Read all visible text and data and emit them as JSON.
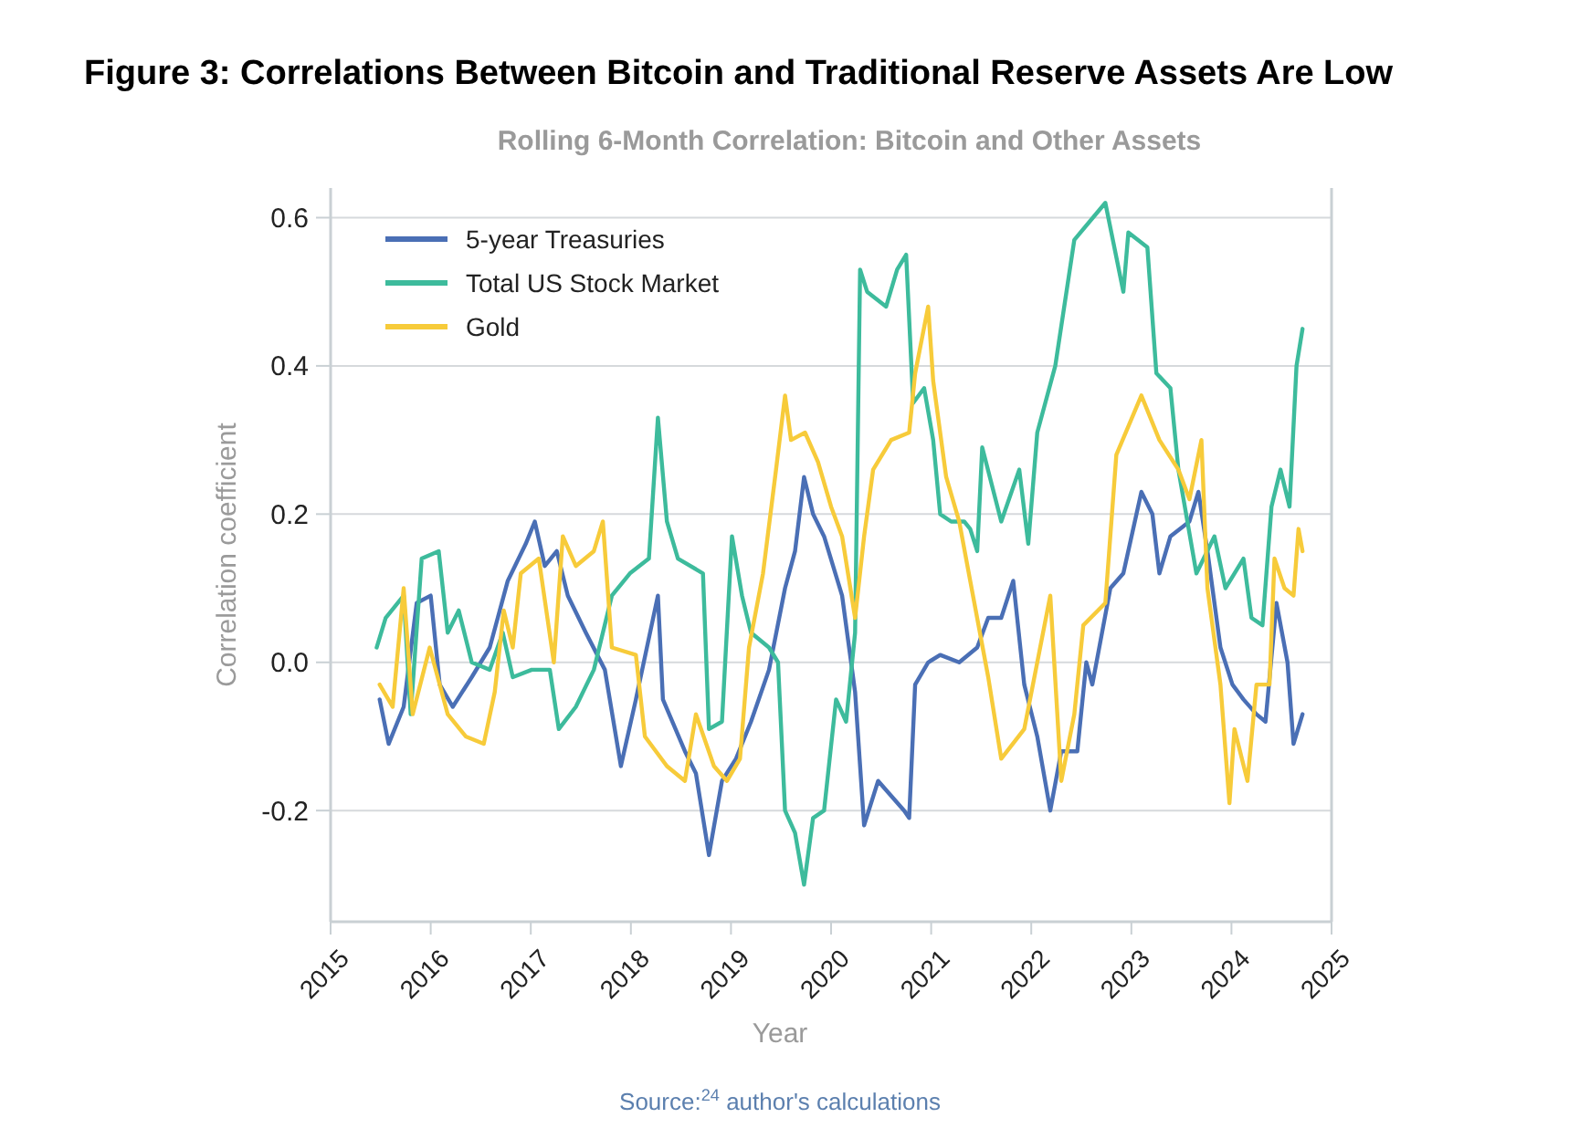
{
  "chart_data": {
    "type": "line",
    "title": "Figure 3: Correlations Between Bitcoin and Traditional Reserve Assets Are Low",
    "subtitle": "Rolling 6-Month Correlation: Bitcoin and Other Assets",
    "xlabel": "Year",
    "ylabel": "Correlation coefficient",
    "annotations": [
      "Source:$^{24}$ author's calculations"
    ],
    "xlim": [
      2015,
      2025
    ],
    "xticks": [
      2015,
      2016,
      2017,
      2018,
      2019,
      2020,
      2021,
      2022,
      2023,
      2024,
      2025
    ],
    "ylim": [
      -0.35,
      0.64
    ],
    "yticks": [
      -0.2,
      {
        "value": 0,
        "label": "0.0"
      },
      0.2,
      0.4,
      0.6
    ],
    "grid": "y",
    "legend": "top left",
    "line_style": "solid",
    "marker": "none",
    "series": [
      {
        "name": "5-year Treasuries",
        "color": "#4a6fb5",
        "x": [
          2015.49,
          2015.58,
          2015.73,
          2015.86,
          2016.0,
          2016.09,
          2016.22,
          2016.41,
          2016.59,
          2016.77,
          2016.95,
          2017.04,
          2017.14,
          2017.26,
          2017.37,
          2017.55,
          2017.74,
          2017.9,
          2018.05,
          2018.27,
          2018.32,
          2018.54,
          2018.65,
          2018.78,
          2018.91,
          2019.05,
          2019.2,
          2019.38,
          2019.54,
          2019.64,
          2019.73,
          2019.82,
          2019.93,
          2020.11,
          2020.24,
          2020.33,
          2020.47,
          2020.73,
          2020.78,
          2020.84,
          2020.97,
          2021.09,
          2021.28,
          2021.46,
          2021.57,
          2021.7,
          2021.82,
          2021.93,
          2022.06,
          2022.19,
          2022.3,
          2022.46,
          2022.55,
          2022.61,
          2022.79,
          2022.92,
          2023.1,
          2023.21,
          2023.28,
          2023.39,
          2023.58,
          2023.67,
          2023.76,
          2023.89,
          2024.01,
          2024.12,
          2024.25,
          2024.34,
          2024.45,
          2024.56,
          2024.62,
          2024.71
        ],
        "values": [
          -0.05,
          -0.11,
          -0.06,
          0.08,
          0.09,
          -0.03,
          -0.06,
          -0.02,
          0.02,
          0.11,
          0.16,
          0.19,
          0.13,
          0.15,
          0.09,
          0.04,
          -0.01,
          -0.14,
          -0.05,
          0.09,
          -0.05,
          -0.12,
          -0.15,
          -0.26,
          -0.16,
          -0.13,
          -0.08,
          -0.01,
          0.1,
          0.15,
          0.25,
          0.2,
          0.17,
          0.09,
          -0.04,
          -0.22,
          -0.16,
          -0.2,
          -0.21,
          -0.03,
          0.0,
          0.01,
          0.0,
          0.02,
          0.06,
          0.06,
          0.11,
          -0.03,
          -0.1,
          -0.2,
          -0.12,
          -0.12,
          0.0,
          -0.03,
          0.1,
          0.12,
          0.23,
          0.2,
          0.12,
          0.17,
          0.19,
          0.23,
          0.15,
          0.02,
          -0.03,
          -0.05,
          -0.07,
          -0.08,
          0.08,
          0.0,
          -0.11,
          -0.07
        ]
      },
      {
        "name": "Total US Stock Market",
        "color": "#3dbb9c",
        "x": [
          2015.46,
          2015.55,
          2015.73,
          2015.8,
          2015.91,
          2016.08,
          2016.17,
          2016.28,
          2016.41,
          2016.59,
          2016.72,
          2016.82,
          2017.01,
          2017.19,
          2017.28,
          2017.45,
          2017.63,
          2017.81,
          2017.99,
          2018.18,
          2018.27,
          2018.36,
          2018.47,
          2018.72,
          2018.78,
          2018.91,
          2019.01,
          2019.11,
          2019.2,
          2019.38,
          2019.47,
          2019.54,
          2019.64,
          2019.73,
          2019.82,
          2019.93,
          2020.05,
          2020.15,
          2020.24,
          2020.29,
          2020.36,
          2020.55,
          2020.66,
          2020.75,
          2020.82,
          2020.93,
          2021.02,
          2021.09,
          2021.2,
          2021.33,
          2021.39,
          2021.46,
          2021.51,
          2021.7,
          2021.88,
          2021.97,
          2022.06,
          2022.24,
          2022.43,
          2022.74,
          2022.92,
          2022.97,
          2023.16,
          2023.25,
          2023.39,
          2023.47,
          2023.65,
          2023.83,
          2023.94,
          2024.12,
          2024.2,
          2024.31,
          2024.4,
          2024.49,
          2024.58,
          2024.65,
          2024.71
        ],
        "values": [
          0.02,
          0.06,
          0.09,
          -0.07,
          0.14,
          0.15,
          0.04,
          0.07,
          0.0,
          -0.01,
          0.04,
          -0.02,
          -0.01,
          -0.01,
          -0.09,
          -0.06,
          -0.01,
          0.09,
          0.12,
          0.14,
          0.33,
          0.19,
          0.14,
          0.12,
          -0.09,
          -0.08,
          0.17,
          0.09,
          0.04,
          0.02,
          0.0,
          -0.2,
          -0.23,
          -0.3,
          -0.21,
          -0.2,
          -0.05,
          -0.08,
          0.04,
          0.53,
          0.5,
          0.48,
          0.53,
          0.55,
          0.35,
          0.37,
          0.3,
          0.2,
          0.19,
          0.19,
          0.18,
          0.15,
          0.29,
          0.19,
          0.26,
          0.16,
          0.31,
          0.4,
          0.57,
          0.62,
          0.5,
          0.58,
          0.56,
          0.39,
          0.37,
          0.26,
          0.12,
          0.17,
          0.1,
          0.14,
          0.06,
          0.05,
          0.21,
          0.26,
          0.21,
          0.4,
          0.45
        ]
      },
      {
        "name": "Gold",
        "color": "#f7cb3a",
        "x": [
          2015.49,
          2015.62,
          2015.73,
          2015.82,
          2015.99,
          2016.17,
          2016.35,
          2016.53,
          2016.64,
          2016.73,
          2016.82,
          2016.9,
          2017.08,
          2017.23,
          2017.32,
          2017.45,
          2017.63,
          2017.72,
          2017.81,
          2018.05,
          2018.14,
          2018.36,
          2018.54,
          2018.65,
          2018.83,
          2018.96,
          2019.09,
          2019.18,
          2019.32,
          2019.45,
          2019.54,
          2019.6,
          2019.74,
          2019.87,
          2020.0,
          2020.11,
          2020.24,
          2020.33,
          2020.42,
          2020.6,
          2020.78,
          2020.84,
          2020.97,
          2021.02,
          2021.15,
          2021.28,
          2021.39,
          2021.57,
          2021.7,
          2021.93,
          2022.19,
          2022.3,
          2022.43,
          2022.52,
          2022.74,
          2022.85,
          2023.1,
          2023.28,
          2023.47,
          2023.58,
          2023.7,
          2023.76,
          2023.89,
          2023.98,
          2024.03,
          2024.16,
          2024.25,
          2024.38,
          2024.43,
          2024.53,
          2024.62,
          2024.67,
          2024.71
        ],
        "values": [
          -0.03,
          -0.06,
          0.1,
          -0.07,
          0.02,
          -0.07,
          -0.1,
          -0.11,
          -0.04,
          0.07,
          0.02,
          0.12,
          0.14,
          0.0,
          0.17,
          0.13,
          0.15,
          0.19,
          0.02,
          0.01,
          -0.1,
          -0.14,
          -0.16,
          -0.07,
          -0.14,
          -0.16,
          -0.13,
          0.02,
          0.12,
          0.26,
          0.36,
          0.3,
          0.31,
          0.27,
          0.21,
          0.17,
          0.06,
          0.17,
          0.26,
          0.3,
          0.31,
          0.39,
          0.48,
          0.38,
          0.25,
          0.19,
          0.11,
          -0.02,
          -0.13,
          -0.09,
          0.09,
          -0.16,
          -0.07,
          0.05,
          0.08,
          0.28,
          0.36,
          0.3,
          0.26,
          0.22,
          0.3,
          0.1,
          -0.03,
          -0.19,
          -0.09,
          -0.16,
          -0.03,
          -0.03,
          0.14,
          0.1,
          0.09,
          0.18,
          0.15
        ]
      }
    ]
  }
}
